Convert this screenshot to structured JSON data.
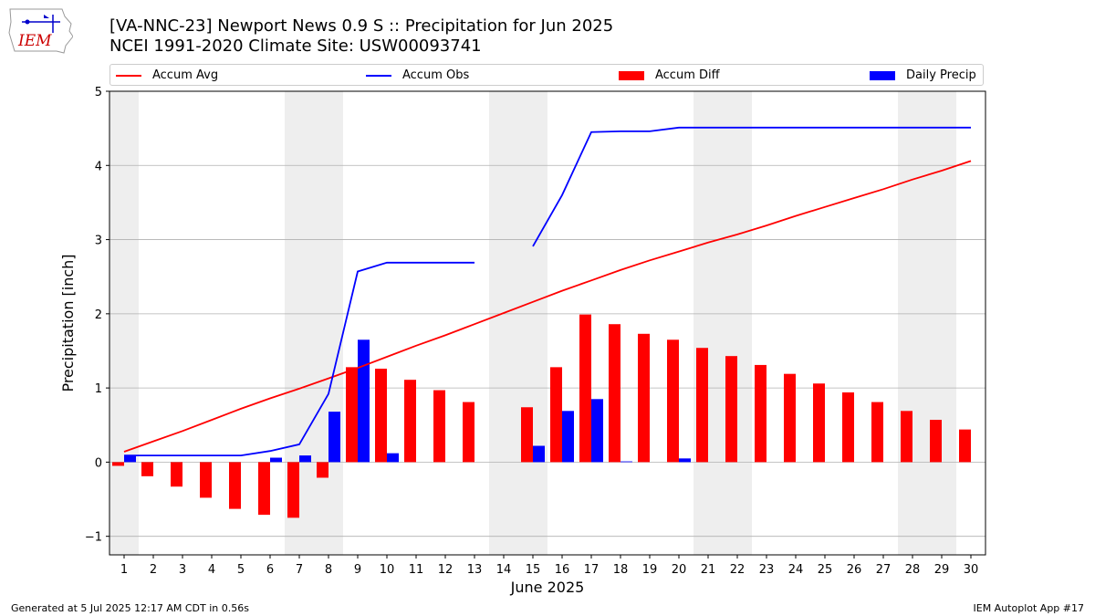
{
  "header": {
    "logo_text": "IEM",
    "title_line1": "[VA-NNC-23] Newport News 0.9 S :: Precipitation for Jun 2025",
    "title_line2": "NCEI 1991-2020 Climate Site: USW00093741"
  },
  "footer": {
    "generated": "Generated at 5 Jul 2025 12:17 AM CDT in 0.56s",
    "app": "IEM Autoplot App #17"
  },
  "colors": {
    "avg": "#ff0000",
    "obs": "#0000ff",
    "diff": "#ff0000",
    "daily": "#0000ff",
    "weekend": "#eeeeee"
  },
  "chart_data": {
    "type": "bar",
    "xlabel": "June 2025",
    "ylabel": "Precipitation [inch]",
    "ylim": [
      -1.25,
      5
    ],
    "yticks": [
      -1,
      0,
      1,
      2,
      3,
      4,
      5
    ],
    "ytick_labels": [
      "−1",
      "0",
      "1",
      "2",
      "3",
      "4",
      "5"
    ],
    "grid": true,
    "legend_position": "top",
    "weekend_shading_days": [
      1,
      7,
      8,
      14,
      15,
      21,
      22,
      28,
      29
    ],
    "days": [
      1,
      2,
      3,
      4,
      5,
      6,
      7,
      8,
      9,
      10,
      11,
      12,
      13,
      14,
      15,
      16,
      17,
      18,
      19,
      20,
      21,
      22,
      23,
      24,
      25,
      26,
      27,
      28,
      29,
      30
    ],
    "day_labels": [
      "1",
      "2",
      "3",
      "4",
      "5",
      "6",
      "7",
      "8",
      "9",
      "10",
      "11",
      "12",
      "13",
      "14",
      "15",
      "16",
      "17",
      "18",
      "19",
      "20",
      "21",
      "22",
      "23",
      "24",
      "25",
      "26",
      "27",
      "28",
      "29",
      "30"
    ],
    "series": [
      {
        "name": "Accum Avg",
        "kind": "line",
        "values": [
          0.14,
          0.28,
          0.42,
          0.57,
          0.72,
          0.86,
          0.99,
          1.13,
          1.27,
          1.42,
          1.57,
          1.71,
          1.86,
          2.01,
          2.16,
          2.31,
          2.45,
          2.59,
          2.72,
          2.84,
          2.96,
          3.07,
          3.19,
          3.32,
          3.44,
          3.56,
          3.68,
          3.81,
          3.93,
          4.06
        ]
      },
      {
        "name": "Accum Obs",
        "kind": "line",
        "values": [
          0.09,
          0.09,
          0.09,
          0.09,
          0.09,
          0.15,
          0.24,
          0.92,
          2.57,
          2.69,
          2.69,
          2.69,
          2.69,
          null,
          2.91,
          3.6,
          4.45,
          4.46,
          4.46,
          4.51,
          4.51,
          4.51,
          4.51,
          4.51,
          4.51,
          4.51,
          4.51,
          4.51,
          4.51,
          4.51
        ]
      },
      {
        "name": "Accum Diff",
        "kind": "bar",
        "values": [
          -0.05,
          -0.19,
          -0.33,
          -0.48,
          -0.63,
          -0.71,
          -0.75,
          -0.21,
          1.28,
          1.26,
          1.11,
          0.97,
          0.81,
          null,
          0.74,
          1.28,
          1.99,
          1.86,
          1.73,
          1.65,
          1.54,
          1.43,
          1.31,
          1.19,
          1.06,
          0.94,
          0.81,
          0.69,
          0.57,
          0.44
        ]
      },
      {
        "name": "Daily Precip",
        "kind": "bar",
        "values": [
          0.09,
          0,
          0,
          0,
          0,
          0.06,
          0.09,
          0.68,
          1.65,
          0.12,
          0,
          0,
          0,
          null,
          0.22,
          0.69,
          0.85,
          0.01,
          0,
          0.05,
          0,
          0,
          0,
          0,
          0,
          0,
          0,
          0,
          0,
          0
        ]
      }
    ]
  }
}
